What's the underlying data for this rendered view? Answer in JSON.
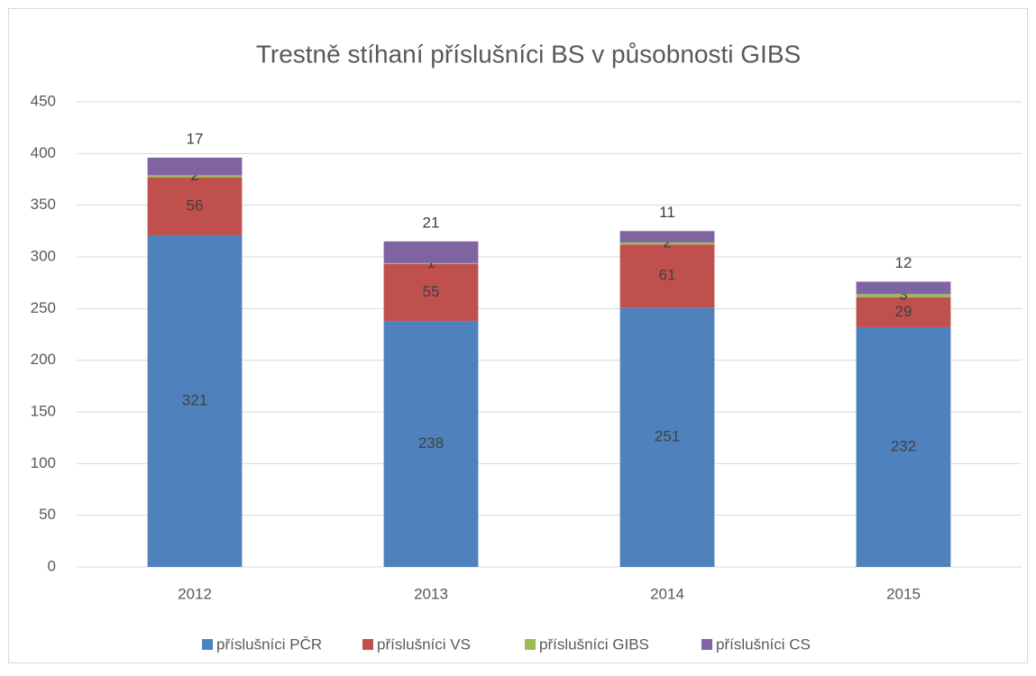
{
  "chart_data": {
    "type": "bar",
    "stacked": true,
    "title": "Trestně stíhaní příslušníci BS v působnosti GIBS",
    "categories": [
      "2012",
      "2013",
      "2014",
      "2015"
    ],
    "series": [
      {
        "name": "příslušníci PČR",
        "color": "#4f81bd",
        "values": [
          321,
          238,
          251,
          232
        ]
      },
      {
        "name": "příslušníci VS",
        "color": "#c0504d",
        "values": [
          56,
          55,
          61,
          29
        ]
      },
      {
        "name": "příslušníci GIBS",
        "color": "#9bbb59",
        "values": [
          2,
          1,
          2,
          3
        ]
      },
      {
        "name": "příslušníci CS",
        "color": "#8064a2",
        "values": [
          17,
          21,
          11,
          12
        ]
      }
    ],
    "ylim": [
      0,
      450
    ],
    "yticks": [
      0,
      50,
      100,
      150,
      200,
      250,
      300,
      350,
      400,
      450
    ],
    "grid": true,
    "legend": "bottom"
  }
}
